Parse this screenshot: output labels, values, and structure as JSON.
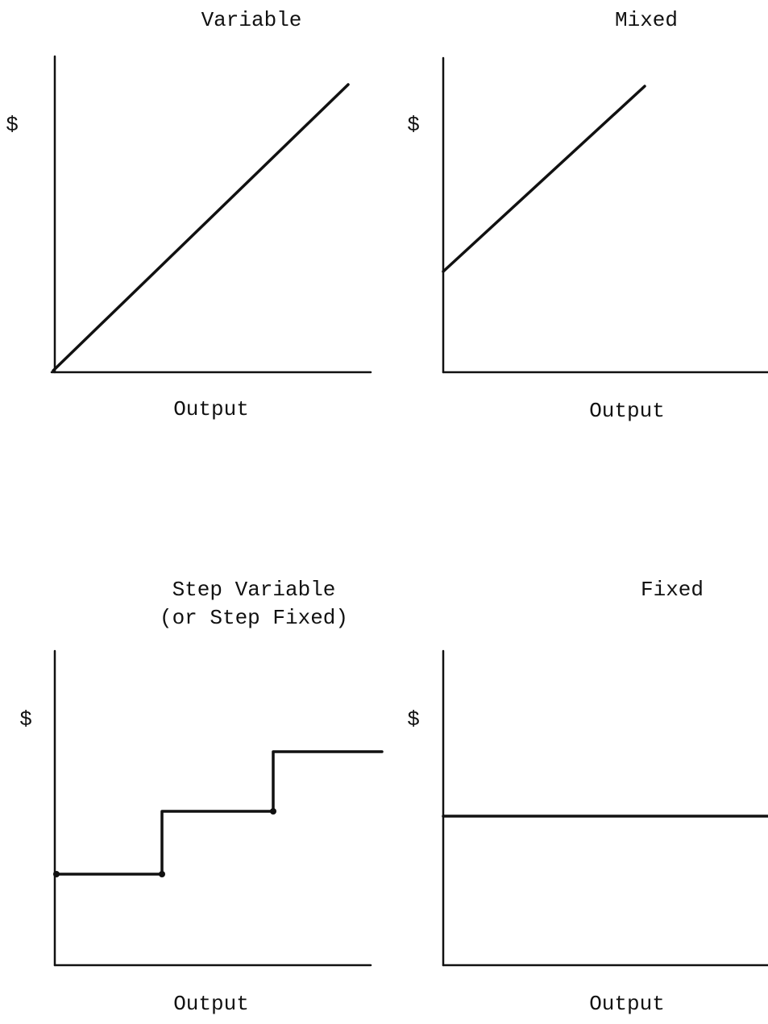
{
  "panels": [
    {
      "title": [
        "Variable"
      ],
      "y_label": "$",
      "x_label": "Output"
    },
    {
      "title": [
        "Mixed"
      ],
      "y_label": "$",
      "x_label": "Output"
    },
    {
      "title": [
        "Step Variable",
        "(or Step Fixed)"
      ],
      "y_label": "$",
      "x_label": "Output"
    },
    {
      "title": [
        "Fixed"
      ],
      "y_label": "$",
      "x_label": "Output"
    }
  ]
}
